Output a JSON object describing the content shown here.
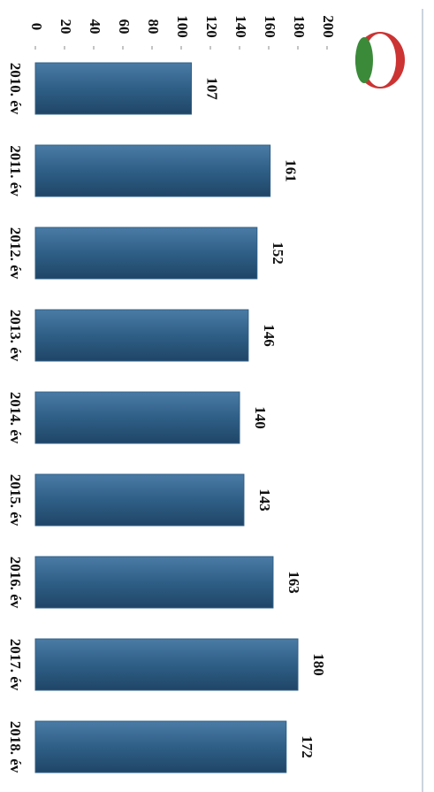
{
  "chart_data": {
    "type": "bar",
    "orientation": "rotated",
    "categories": [
      "2010. év",
      "2011. év",
      "2012. év",
      "2013. év",
      "2014. év",
      "2015. év",
      "2016. év",
      "2017. év",
      "2018. év"
    ],
    "values": [
      107,
      161,
      152,
      146,
      140,
      143,
      163,
      180,
      172
    ],
    "color": "#2f5f86",
    "ylim": [
      0,
      200
    ],
    "yticks": [
      0,
      20,
      40,
      60,
      80,
      100,
      120,
      140,
      160,
      180,
      200
    ]
  }
}
